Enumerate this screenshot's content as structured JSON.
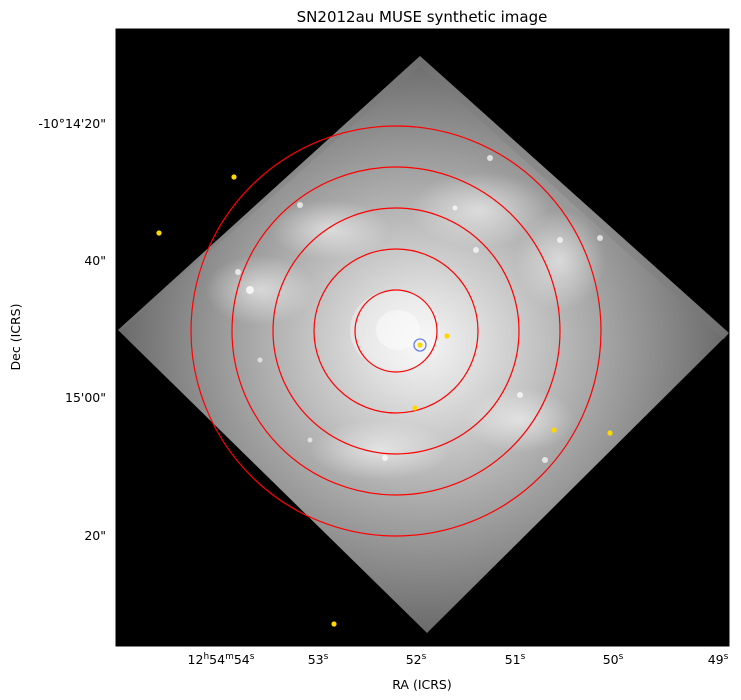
{
  "title": "SN2012au MUSE synthetic image",
  "xlabel": "RA (ICRS)",
  "ylabel": "Dec (ICRS)",
  "x_ticks": [
    {
      "base": "12",
      "unit1": "h",
      "mid": "54",
      "unit2": "m",
      "num": "54",
      "unit3": "s"
    },
    {
      "num": "53",
      "unit3": "s"
    },
    {
      "num": "52",
      "unit3": "s"
    },
    {
      "num": "51",
      "unit3": "s"
    },
    {
      "num": "50",
      "unit3": "s"
    },
    {
      "num": "49",
      "unit3": "s"
    }
  ],
  "y_ticks": [
    "-10°14'20\"",
    "40\"",
    "15'00\"",
    "20\""
  ],
  "colors": {
    "apertures": "#ff0000",
    "sources": "#ffd700",
    "sn_marker": "#6a7fe8",
    "background": "#000000"
  },
  "apertures": {
    "count": 5
  },
  "sources": {
    "count": 8
  }
}
